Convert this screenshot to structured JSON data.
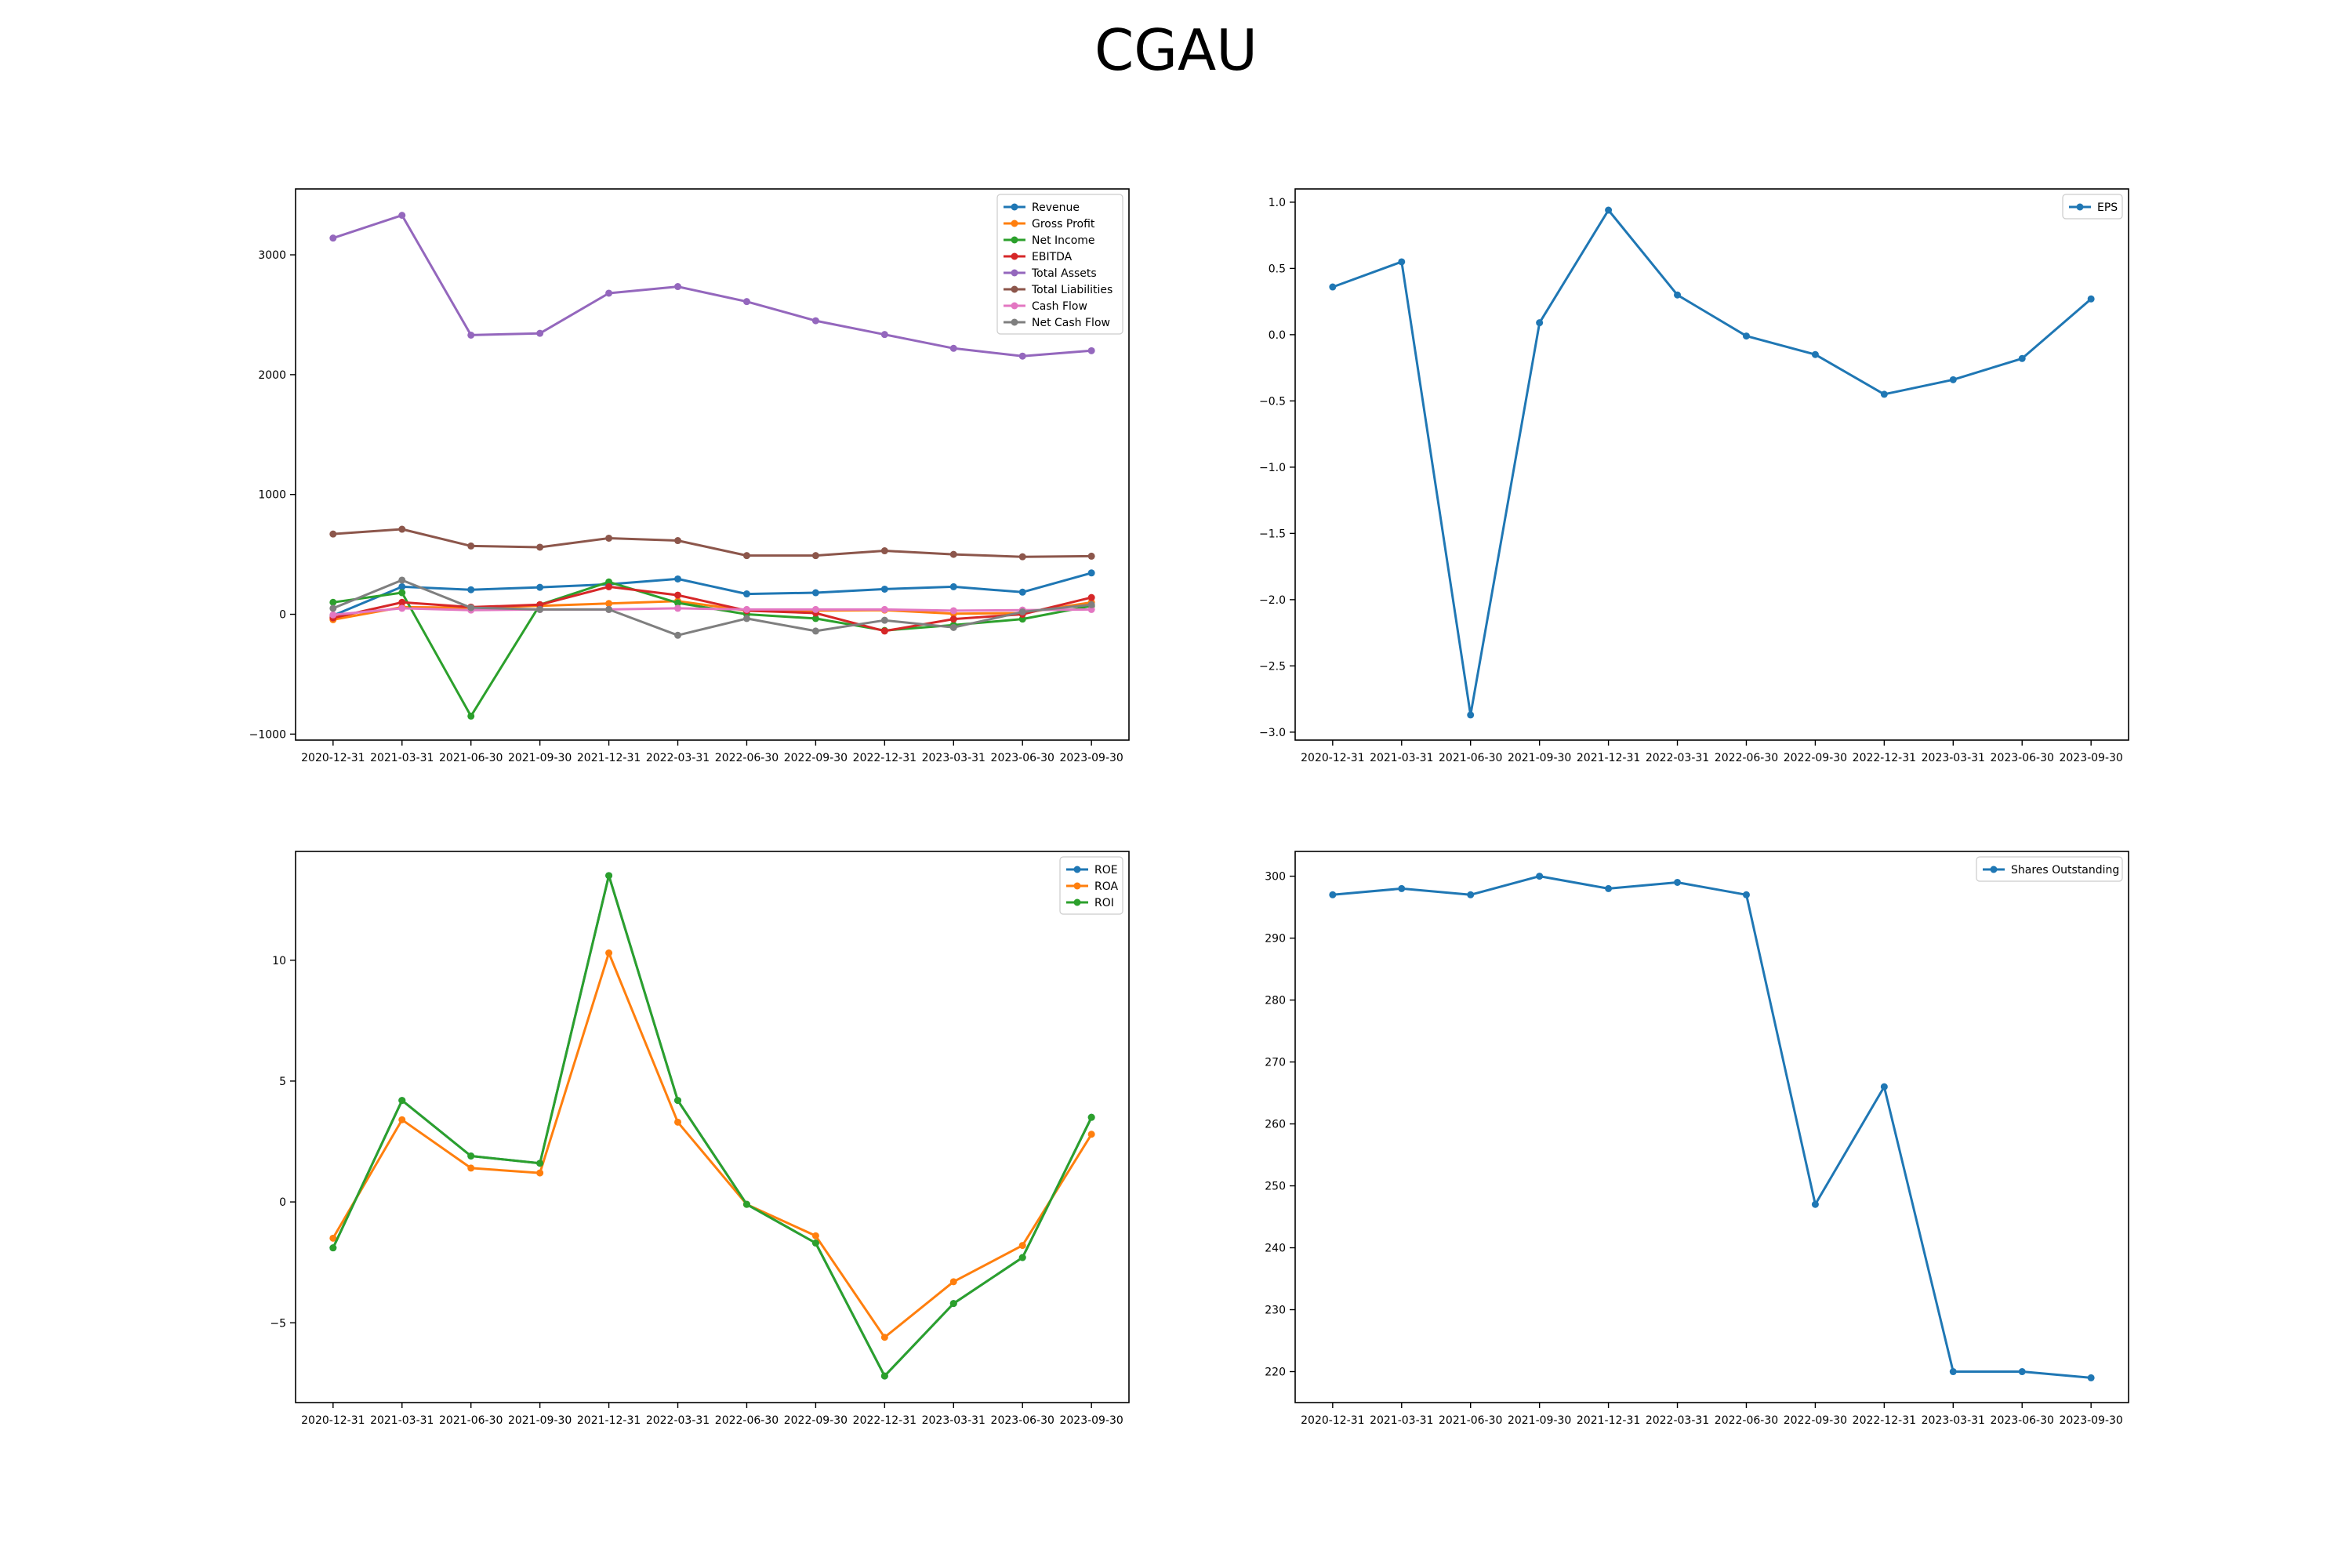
{
  "title": "CGAU",
  "chart_data": [
    {
      "type": "line",
      "title": "",
      "xlabel": "",
      "ylabel": "",
      "x": [
        "2020-12-31",
        "2021-03-31",
        "2021-06-30",
        "2021-09-30",
        "2021-12-31",
        "2022-03-31",
        "2022-06-30",
        "2022-09-30",
        "2022-12-31",
        "2023-03-31",
        "2023-06-30",
        "2023-09-30"
      ],
      "ylim": [
        -1050,
        3550
      ],
      "yticks": [
        -1000,
        0,
        1000,
        2000,
        3000
      ],
      "grid": false,
      "legend": "top-right",
      "series": [
        {
          "name": "Revenue",
          "color": "#1f77b4",
          "values": [
            -10,
            230,
            205,
            225,
            250,
            295,
            170,
            180,
            210,
            230,
            185,
            345
          ]
        },
        {
          "name": "Gross Profit",
          "color": "#ff7f0e",
          "values": [
            -45,
            60,
            55,
            70,
            90,
            110,
            30,
            30,
            35,
            5,
            10,
            100
          ]
        },
        {
          "name": "Net Income",
          "color": "#2ca02c",
          "values": [
            100,
            180,
            -850,
            80,
            270,
            95,
            0,
            -35,
            -135,
            -90,
            -40,
            70
          ]
        },
        {
          "name": "EBITDA",
          "color": "#d62728",
          "values": [
            -30,
            100,
            60,
            80,
            230,
            160,
            30,
            10,
            -140,
            -40,
            0,
            140
          ]
        },
        {
          "name": "Total Assets",
          "color": "#9467bd",
          "values": [
            3140,
            3330,
            2330,
            2345,
            2680,
            2735,
            2610,
            2450,
            2335,
            2220,
            2155,
            2200
          ]
        },
        {
          "name": "Total Liabilities",
          "color": "#8c564b",
          "values": [
            670,
            710,
            570,
            560,
            635,
            615,
            490,
            490,
            530,
            500,
            480,
            485
          ]
        },
        {
          "name": "Cash Flow",
          "color": "#e377c2",
          "values": [
            -5,
            50,
            35,
            40,
            40,
            50,
            40,
            40,
            40,
            30,
            35,
            40
          ]
        },
        {
          "name": "Net Cash Flow",
          "color": "#7f7f7f",
          "values": [
            50,
            285,
            55,
            40,
            40,
            -175,
            -35,
            -140,
            -50,
            -110,
            20,
            80
          ]
        }
      ]
    },
    {
      "type": "line",
      "title": "",
      "xlabel": "",
      "ylabel": "",
      "x": [
        "2020-12-31",
        "2021-03-31",
        "2021-06-30",
        "2021-09-30",
        "2021-12-31",
        "2022-03-31",
        "2022-06-30",
        "2022-09-30",
        "2022-12-31",
        "2023-03-31",
        "2023-06-30",
        "2023-09-30"
      ],
      "ylim": [
        -3.06,
        1.1
      ],
      "yticks": [
        -3.0,
        -2.5,
        -2.0,
        -1.5,
        -1.0,
        -0.5,
        0.0,
        0.5,
        1.0
      ],
      "ytick_labels": [
        "−3.0",
        "−2.5",
        "−2.0",
        "−1.5",
        "−1.0",
        "−0.5",
        "0.0",
        "0.5",
        "1.0"
      ],
      "grid": false,
      "legend": "top-right",
      "series": [
        {
          "name": "EPS",
          "color": "#1f77b4",
          "values": [
            0.36,
            0.55,
            -2.87,
            0.09,
            0.94,
            0.3,
            -0.01,
            -0.15,
            -0.45,
            -0.34,
            -0.18,
            0.27
          ]
        }
      ]
    },
    {
      "type": "line",
      "title": "",
      "xlabel": "",
      "ylabel": "",
      "x": [
        "2020-12-31",
        "2021-03-31",
        "2021-06-30",
        "2021-09-30",
        "2021-12-31",
        "2022-03-31",
        "2022-06-30",
        "2022-09-30",
        "2022-12-31",
        "2023-03-31",
        "2023-06-30",
        "2023-09-30"
      ],
      "ylim": [
        -8.3,
        14.5
      ],
      "yticks": [
        -5,
        0,
        5,
        10
      ],
      "ytick_labels": [
        "−5",
        "0",
        "5",
        "10"
      ],
      "grid": false,
      "legend": "top-right",
      "series": [
        {
          "name": "ROE",
          "color": "#1f77b4",
          "values": [
            -1.9,
            4.2,
            1.9,
            1.6,
            13.5,
            4.2,
            -0.1,
            -1.7,
            -7.2,
            -4.2,
            -2.3,
            3.5
          ]
        },
        {
          "name": "ROA",
          "color": "#ff7f0e",
          "values": [
            -1.5,
            3.4,
            1.4,
            1.2,
            10.3,
            3.3,
            -0.1,
            -1.4,
            -5.6,
            -3.3,
            -1.8,
            2.8
          ]
        },
        {
          "name": "ROI",
          "color": "#2ca02c",
          "values": [
            -1.9,
            4.2,
            1.9,
            1.6,
            13.5,
            4.2,
            -0.1,
            -1.7,
            -7.2,
            -4.2,
            -2.3,
            3.5
          ]
        }
      ]
    },
    {
      "type": "line",
      "title": "",
      "xlabel": "",
      "ylabel": "",
      "x": [
        "2020-12-31",
        "2021-03-31",
        "2021-06-30",
        "2021-09-30",
        "2021-12-31",
        "2022-03-31",
        "2022-06-30",
        "2022-09-30",
        "2022-12-31",
        "2023-03-31",
        "2023-06-30",
        "2023-09-30"
      ],
      "ylim": [
        215,
        304
      ],
      "yticks": [
        220,
        230,
        240,
        250,
        260,
        270,
        280,
        290,
        300
      ],
      "grid": false,
      "legend": "top-right",
      "series": [
        {
          "name": "Shares Outstanding",
          "color": "#1f77b4",
          "values": [
            297,
            298,
            297,
            300,
            298,
            299,
            297,
            247,
            266,
            220,
            220,
            219
          ]
        }
      ]
    }
  ]
}
